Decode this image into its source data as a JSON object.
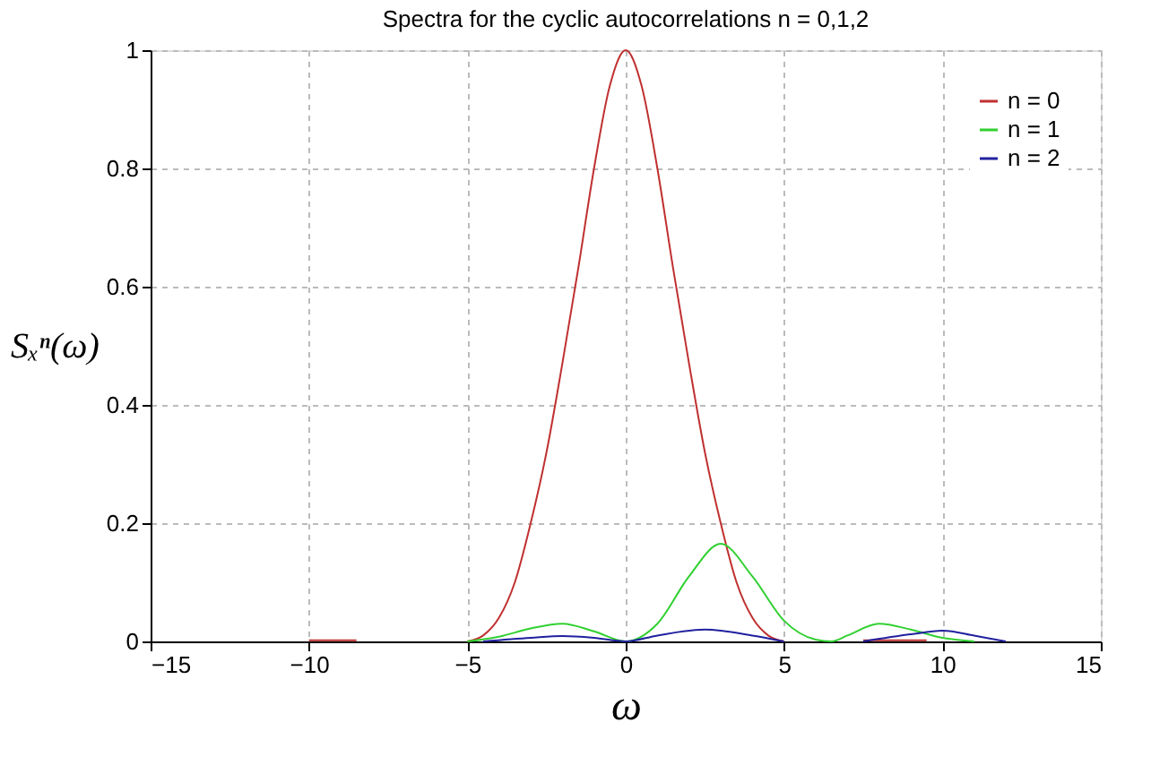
{
  "chart_data": {
    "type": "line",
    "title": "Spectra for the cyclic autocorrelations n = 0,1,2",
    "xlabel": "ω",
    "ylabel": "Sₓⁿ(ω)",
    "xlim": [
      -15,
      15
    ],
    "xticks": [
      -15,
      -10,
      -5,
      0,
      5,
      10,
      15
    ],
    "ylim": [
      0,
      1
    ],
    "yticks": [
      0,
      0.2,
      0.4,
      0.6,
      0.8,
      1
    ],
    "grid": true,
    "legend": "top right",
    "line_style": "solid",
    "marker": "none",
    "series": [
      {
        "name": "n = 0",
        "color": "#c03030",
        "x": [
          -10,
          -8.5,
          -7,
          -5,
          -4.5,
          -4,
          -3.5,
          -3,
          -2.5,
          -2,
          -1.5,
          -1,
          -0.5,
          0,
          0.5,
          1,
          1.5,
          2,
          2.5,
          3,
          3.5,
          4,
          4.5,
          5,
          6,
          7.5,
          9.5
        ],
        "values": [
          0.002,
          0.002,
          null,
          0,
          0.01,
          0.04,
          0.1,
          0.2,
          0.32,
          0.47,
          0.63,
          0.8,
          0.94,
          1,
          0.94,
          0.8,
          0.63,
          0.47,
          0.32,
          0.2,
          0.1,
          0.04,
          0.01,
          0,
          null,
          0.002,
          0.002
        ]
      },
      {
        "name": "n = 1",
        "color": "#30d030",
        "x": [
          -5,
          -4,
          -3,
          -2,
          -1,
          0,
          1,
          2,
          3,
          4,
          5,
          6,
          6.5,
          7,
          8,
          9,
          10,
          11
        ],
        "values": [
          0,
          0.008,
          0.022,
          0.03,
          0.017,
          0,
          0.03,
          0.11,
          0.165,
          0.11,
          0.035,
          0.003,
          0,
          0.01,
          0.03,
          0.02,
          0.006,
          0
        ]
      },
      {
        "name": "n = 2",
        "color": "#2020a0",
        "x": [
          -4.5,
          -3,
          -2,
          -1,
          0,
          1,
          2.5,
          4,
          5,
          6,
          7.5,
          9,
          10,
          11,
          12
        ],
        "values": [
          0,
          0.006,
          0.009,
          0.006,
          0,
          0.01,
          0.02,
          0.01,
          0,
          null,
          0,
          0.012,
          0.018,
          0.01,
          0
        ]
      }
    ]
  }
}
